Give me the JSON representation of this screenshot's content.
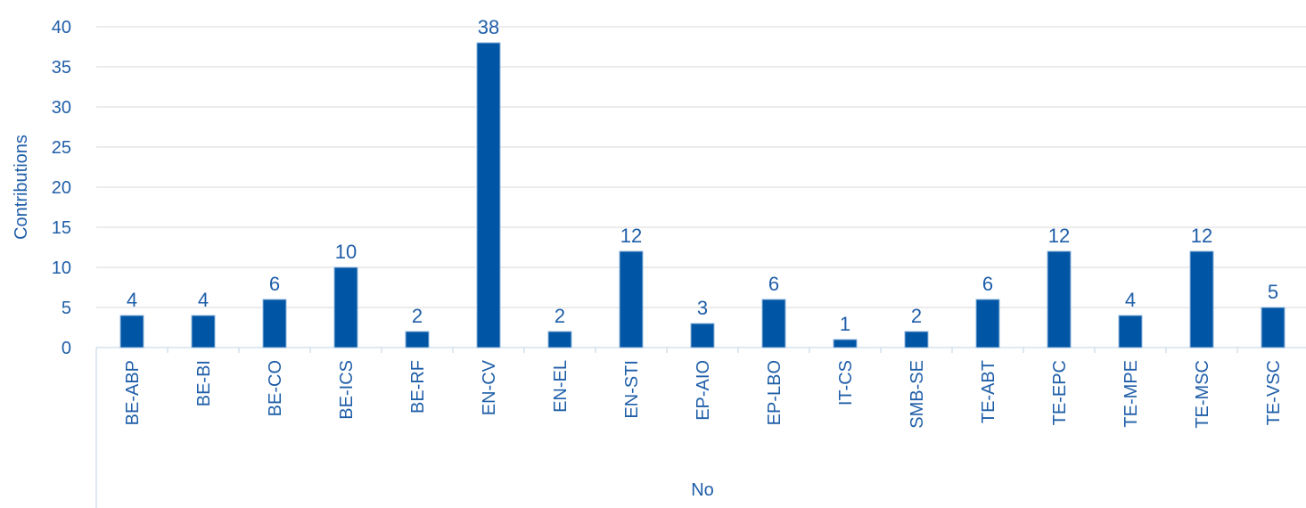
{
  "chart_data": {
    "type": "bar",
    "categories": [
      "BE-ABP",
      "BE-BI",
      "BE-CO",
      "BE-ICS",
      "BE-RF",
      "EN-CV",
      "EN-EL",
      "EN-STI",
      "EP-AIO",
      "EP-LBO",
      "IT-CS",
      "SMB-SE",
      "TE-ABT",
      "TE-EPC",
      "TE-MPE",
      "TE-MSC",
      "TE-VSC"
    ],
    "values": [
      4,
      4,
      6,
      10,
      2,
      38,
      2,
      12,
      3,
      6,
      1,
      2,
      6,
      12,
      4,
      12,
      5
    ],
    "data_labels": [
      "4",
      "4",
      "6",
      "10",
      "2",
      "38",
      "2",
      "12",
      "3",
      "6",
      "1",
      "2",
      "6",
      "12",
      "4",
      "12",
      "5"
    ],
    "xlabel": "No",
    "ylabel": "Contributions",
    "ylim": [
      0,
      40
    ],
    "yticks": [
      "0",
      "5",
      "10",
      "15",
      "20",
      "25",
      "30",
      "35",
      "40"
    ],
    "grid": true,
    "colors": {
      "bar": "#0055a4",
      "text": "#1f5ea8",
      "grid": "#d9d9d9"
    }
  }
}
